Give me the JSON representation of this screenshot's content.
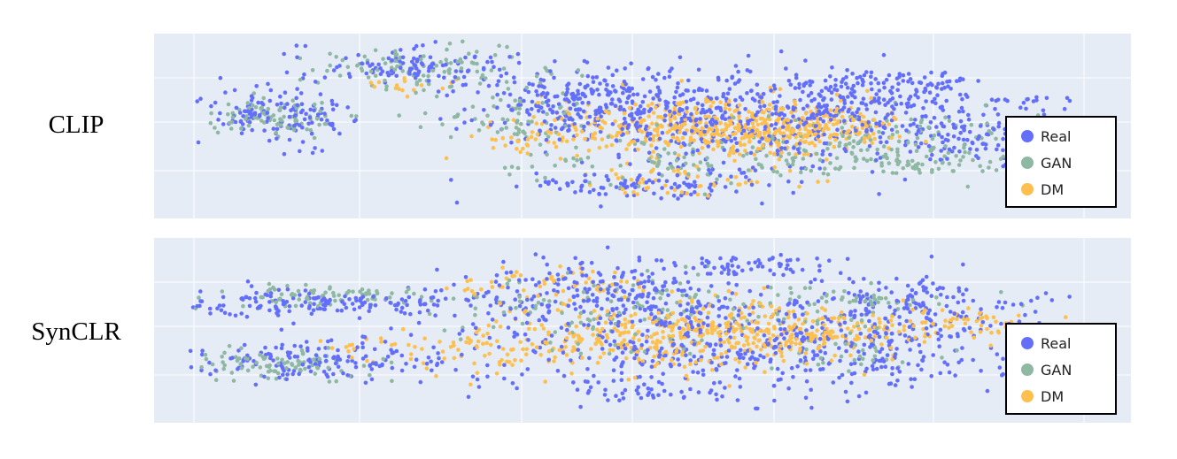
{
  "colors": {
    "background": "#ffffff",
    "plot_background": "#e5ecf6",
    "grid": "#ffffff",
    "legend_border": "#000000"
  },
  "legend_position": "right",
  "chart_data": [
    {
      "type": "scatter",
      "title": "",
      "row_label": "CLIP",
      "xlabel": "",
      "ylabel": "",
      "xlim": [
        0,
        100
      ],
      "ylim": [
        0,
        100
      ],
      "grid": true,
      "series": [
        {
          "name": "Real",
          "color": "#636efa",
          "clusters": [
            {
              "x": 10,
              "y": 57,
              "sx": 4.5,
              "sy": 6,
              "n": 130
            },
            {
              "x": 25,
              "y": 84,
              "sx": 7,
              "sy": 6,
              "n": 120
            },
            {
              "x": 46,
              "y": 60,
              "sx": 7,
              "sy": 11,
              "n": 260
            },
            {
              "x": 62,
              "y": 55,
              "sx": 10,
              "sy": 15,
              "n": 380
            },
            {
              "x": 76,
              "y": 66,
              "sx": 6,
              "sy": 10,
              "n": 160
            },
            {
              "x": 88,
              "y": 45,
              "sx": 5,
              "sy": 10,
              "n": 120
            },
            {
              "x": 52,
              "y": 16,
              "sx": 8,
              "sy": 5,
              "n": 110
            },
            {
              "x": 82,
              "y": 76,
              "sx": 3,
              "sy": 3,
              "n": 25
            },
            {
              "x": 94,
              "y": 64,
              "sx": 4,
              "sy": 3,
              "n": 25
            },
            {
              "x": 13,
              "y": 35,
              "sx": 1,
              "sy": 1,
              "n": 5
            }
          ]
        },
        {
          "name": "GAN",
          "color": "#8fb8a3",
          "clusters": [
            {
              "x": 10,
              "y": 54,
              "sx": 4,
              "sy": 5,
              "n": 90
            },
            {
              "x": 27,
              "y": 83,
              "sx": 7,
              "sy": 6,
              "n": 110
            },
            {
              "x": 37,
              "y": 55,
              "sx": 5,
              "sy": 9,
              "n": 70
            },
            {
              "x": 58,
              "y": 30,
              "sx": 10,
              "sy": 8,
              "n": 120
            },
            {
              "x": 78,
              "y": 43,
              "sx": 9,
              "sy": 8,
              "n": 110
            },
            {
              "x": 84,
              "y": 27,
              "sx": 6,
              "sy": 3,
              "n": 60
            }
          ]
        },
        {
          "name": "DM",
          "color": "#fdc04e",
          "clusters": [
            {
              "x": 58,
              "y": 50,
              "sx": 9,
              "sy": 9,
              "n": 300
            },
            {
              "x": 67,
              "y": 48,
              "sx": 6,
              "sy": 7,
              "n": 220
            },
            {
              "x": 42,
              "y": 44,
              "sx": 6,
              "sy": 8,
              "n": 60
            },
            {
              "x": 56,
              "y": 18,
              "sx": 7,
              "sy": 4,
              "n": 50
            },
            {
              "x": 24,
              "y": 73,
              "sx": 2,
              "sy": 3,
              "n": 15
            }
          ]
        }
      ]
    },
    {
      "type": "scatter",
      "title": "",
      "row_label": "SynCLR",
      "xlabel": "",
      "ylabel": "",
      "xlim": [
        0,
        100
      ],
      "ylim": [
        0,
        100
      ],
      "grid": true,
      "series": [
        {
          "name": "Real",
          "color": "#636efa",
          "clusters": [
            {
              "x": 16,
              "y": 66,
              "sx": 9,
              "sy": 4,
              "n": 170
            },
            {
              "x": 14,
              "y": 33,
              "sx": 8,
              "sy": 6,
              "n": 150
            },
            {
              "x": 46,
              "y": 72,
              "sx": 6,
              "sy": 9,
              "n": 150
            },
            {
              "x": 56,
              "y": 46,
              "sx": 13,
              "sy": 17,
              "n": 450
            },
            {
              "x": 77,
              "y": 40,
              "sx": 8,
              "sy": 13,
              "n": 180
            },
            {
              "x": 82,
              "y": 66,
              "sx": 7,
              "sy": 8,
              "n": 120
            },
            {
              "x": 62,
              "y": 88,
              "sx": 5,
              "sy": 3,
              "n": 60
            },
            {
              "x": 52,
              "y": 14,
              "sx": 5,
              "sy": 3,
              "n": 30
            }
          ]
        },
        {
          "name": "GAN",
          "color": "#8fb8a3",
          "clusters": [
            {
              "x": 14,
              "y": 70,
              "sx": 7,
              "sy": 3,
              "n": 80
            },
            {
              "x": 10,
              "y": 30,
              "sx": 5,
              "sy": 5,
              "n": 90
            },
            {
              "x": 50,
              "y": 60,
              "sx": 10,
              "sy": 12,
              "n": 120
            },
            {
              "x": 73,
              "y": 67,
              "sx": 6,
              "sy": 6,
              "n": 60
            },
            {
              "x": 76,
              "y": 38,
              "sx": 5,
              "sy": 8,
              "n": 40
            }
          ]
        },
        {
          "name": "DM",
          "color": "#fdc04e",
          "clusters": [
            {
              "x": 53,
              "y": 45,
              "sx": 10,
              "sy": 10,
              "n": 340
            },
            {
              "x": 70,
              "y": 48,
              "sx": 7,
              "sy": 8,
              "n": 160
            },
            {
              "x": 40,
              "y": 78,
              "sx": 6,
              "sy": 5,
              "n": 60
            },
            {
              "x": 34,
              "y": 38,
              "sx": 5,
              "sy": 8,
              "n": 50
            },
            {
              "x": 86,
              "y": 54,
              "sx": 5,
              "sy": 5,
              "n": 60
            },
            {
              "x": 20,
              "y": 42,
              "sx": 3,
              "sy": 4,
              "n": 15
            }
          ]
        }
      ]
    }
  ]
}
